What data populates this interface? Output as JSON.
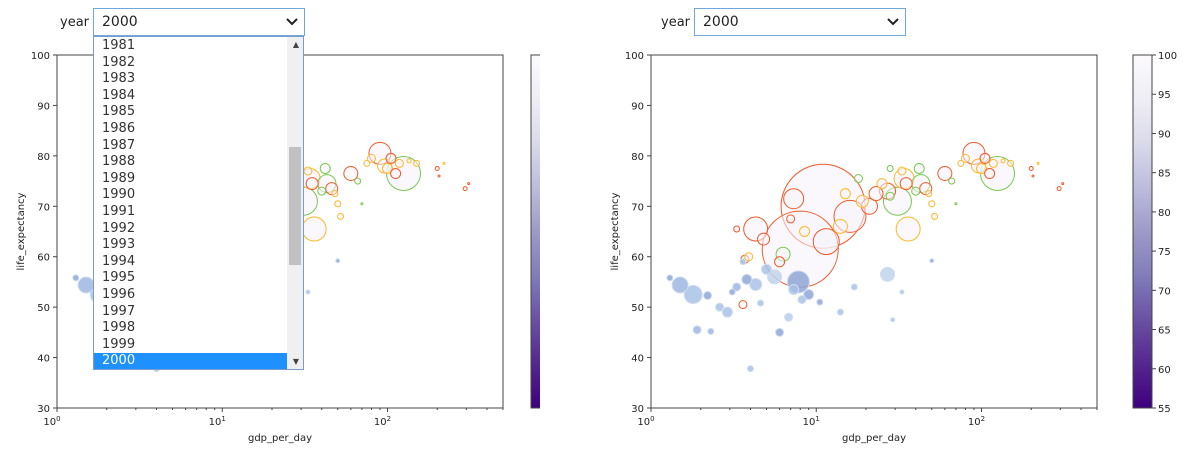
{
  "widgets": [
    {
      "label": "year",
      "value": "2000"
    },
    {
      "label": "year",
      "value": "2000"
    }
  ],
  "dropdown": {
    "options": [
      "1981",
      "1982",
      "1983",
      "1984",
      "1985",
      "1986",
      "1987",
      "1988",
      "1989",
      "1990",
      "1991",
      "1992",
      "1993",
      "1994",
      "1995",
      "1996",
      "1997",
      "1998",
      "1999",
      "2000"
    ],
    "selected": "2000"
  },
  "colorbar": {
    "ticks": [
      "100",
      "95",
      "90",
      "85",
      "80",
      "75",
      "70",
      "65",
      "60",
      "55"
    ],
    "colors": [
      "#3f007d",
      "#54278f",
      "#6a51a3",
      "#807dba",
      "#9e9ac8",
      "#bcbddc",
      "#dadaeb",
      "#efedf5",
      "#fcfbfd"
    ]
  },
  "chart_data": [
    {
      "type": "scatter",
      "xlabel": "gdp_per_day",
      "ylabel": "life_expectancy",
      "xscale": "log",
      "xlim": [
        1,
        500
      ],
      "ylim": [
        30,
        100
      ],
      "xticks": [
        "10^0",
        "10^1",
        "10^2"
      ],
      "yticks": [
        "30",
        "40",
        "50",
        "60",
        "70",
        "80",
        "90",
        "100"
      ],
      "points": [
        {
          "x": 1.3,
          "y": 55.8,
          "s": 3,
          "c": "#8fa6d6",
          "fill": true
        },
        {
          "x": 1.5,
          "y": 54.4,
          "s": 8,
          "c": "#9db6e0",
          "fill": true
        },
        {
          "x": 1.8,
          "y": 52.5,
          "s": 9,
          "c": "#a9c2e6",
          "fill": true
        },
        {
          "x": 1.9,
          "y": 45.5,
          "s": 4,
          "c": "#9db6e0",
          "fill": true
        },
        {
          "x": 2.2,
          "y": 52.3,
          "s": 4,
          "c": "#8fa6d6",
          "fill": true
        },
        {
          "x": 2.3,
          "y": 45.2,
          "s": 3,
          "c": "#9db6e0",
          "fill": true
        },
        {
          "x": 2.6,
          "y": 50.0,
          "s": 4,
          "c": "#a9c2e6",
          "fill": true
        },
        {
          "x": 2.9,
          "y": 49.0,
          "s": 5,
          "c": "#a9c2e6",
          "fill": true
        },
        {
          "x": 3.1,
          "y": 53.0,
          "s": 3,
          "c": "#8fa6d6",
          "fill": true
        },
        {
          "x": 3.3,
          "y": 54.0,
          "s": 4,
          "c": "#9db6e0",
          "fill": true
        },
        {
          "x": 3.6,
          "y": 59.0,
          "s": 3,
          "c": "#a9c2e6",
          "fill": true
        },
        {
          "x": 3.8,
          "y": 55.5,
          "s": 5,
          "c": "#8fa6d6",
          "fill": true
        },
        {
          "x": 4.0,
          "y": 37.8,
          "s": 3,
          "c": "#a9c2e6",
          "fill": true
        },
        {
          "x": 4.3,
          "y": 54.5,
          "s": 6,
          "c": "#a9c2e6",
          "fill": true
        },
        {
          "x": 4.6,
          "y": 50.8,
          "s": 3,
          "c": "#a9c2e6",
          "fill": true
        },
        {
          "x": 5.0,
          "y": 57.5,
          "s": 5,
          "c": "#a9c2e6",
          "fill": true
        },
        {
          "x": 5.6,
          "y": 56.0,
          "s": 7,
          "c": "#bfd3ec",
          "fill": true
        },
        {
          "x": 6.0,
          "y": 45.0,
          "s": 4,
          "c": "#8fa6d6",
          "fill": true
        },
        {
          "x": 6.8,
          "y": 48.0,
          "s": 4,
          "c": "#b7cceb",
          "fill": true
        },
        {
          "x": 7.3,
          "y": 53.5,
          "s": 5,
          "c": "#a9c2e6",
          "fill": true
        },
        {
          "x": 7.8,
          "y": 55.0,
          "s": 11,
          "c": "#8fa6d6",
          "fill": true
        },
        {
          "x": 8.2,
          "y": 51.5,
          "s": 4,
          "c": "#a9c2e6",
          "fill": true
        },
        {
          "x": 9.0,
          "y": 52.5,
          "s": 5,
          "c": "#8fa6d6",
          "fill": true
        },
        {
          "x": 10.5,
          "y": 51.0,
          "s": 3,
          "c": "#8fa6d6",
          "fill": true
        },
        {
          "x": 14.0,
          "y": 49.0,
          "s": 3,
          "c": "#a9c2e6",
          "fill": true
        },
        {
          "x": 17.0,
          "y": 54.0,
          "s": 3,
          "c": "#a9c2e6",
          "fill": true
        },
        {
          "x": 27.0,
          "y": 56.5,
          "s": 7,
          "c": "#bfd3ec",
          "fill": true
        },
        {
          "x": 29.0,
          "y": 47.5,
          "s": 2,
          "c": "#a9c2e6",
          "fill": true
        },
        {
          "x": 33.0,
          "y": 53.0,
          "s": 2,
          "c": "#a9c2e6",
          "fill": true
        },
        {
          "x": 50.0,
          "y": 59.2,
          "s": 2,
          "c": "#8fa6d6",
          "fill": true
        },
        {
          "x": 3.3,
          "y": 65.5,
          "s": 3,
          "c": "#f05a28",
          "fill": false
        },
        {
          "x": 3.7,
          "y": 59.5,
          "s": 4,
          "c": "#f05a28",
          "fill": false
        },
        {
          "x": 4.3,
          "y": 65.5,
          "s": 12,
          "c": "#f05a28",
          "fill": false
        },
        {
          "x": 3.9,
          "y": 60.0,
          "s": 4,
          "c": "#fdb927",
          "fill": false
        },
        {
          "x": 3.6,
          "y": 50.5,
          "s": 4,
          "c": "#f05a28",
          "fill": false
        },
        {
          "x": 4.8,
          "y": 63.5,
          "s": 6,
          "c": "#f05a28",
          "fill": false
        },
        {
          "x": 6.0,
          "y": 59.0,
          "s": 5,
          "c": "#f05a28",
          "fill": false
        },
        {
          "x": 6.3,
          "y": 60.5,
          "s": 7,
          "c": "#78c850",
          "fill": false
        },
        {
          "x": 8.0,
          "y": 61.5,
          "s": 38,
          "c": "#f05a28",
          "fill": false
        },
        {
          "x": 8.5,
          "y": 65.0,
          "s": 5,
          "c": "#fdb927",
          "fill": false
        },
        {
          "x": 7.0,
          "y": 67.5,
          "s": 4,
          "c": "#f05a28",
          "fill": false
        },
        {
          "x": 7.3,
          "y": 71.5,
          "s": 10,
          "c": "#f05a28",
          "fill": false
        },
        {
          "x": 11.0,
          "y": 70.0,
          "s": 42,
          "c": "#f05a28",
          "fill": false
        },
        {
          "x": 11.5,
          "y": 63.0,
          "s": 13,
          "c": "#f05a28",
          "fill": false
        },
        {
          "x": 14.0,
          "y": 66.0,
          "s": 7,
          "c": "#fdb927",
          "fill": false
        },
        {
          "x": 16.0,
          "y": 68.0,
          "s": 16,
          "c": "#f05a28",
          "fill": false
        },
        {
          "x": 15.0,
          "y": 72.5,
          "s": 5,
          "c": "#fdb927",
          "fill": false
        },
        {
          "x": 18.0,
          "y": 75.5,
          "s": 4,
          "c": "#78c850",
          "fill": false
        },
        {
          "x": 19.0,
          "y": 71.0,
          "s": 6,
          "c": "#fdb927",
          "fill": false
        },
        {
          "x": 21.0,
          "y": 70.0,
          "s": 8,
          "c": "#f05a28",
          "fill": false
        },
        {
          "x": 23.0,
          "y": 72.5,
          "s": 7,
          "c": "#f05a28",
          "fill": false
        },
        {
          "x": 25.0,
          "y": 74.5,
          "s": 5,
          "c": "#fdb927",
          "fill": false
        },
        {
          "x": 27.0,
          "y": 73.0,
          "s": 8,
          "c": "#f05a28",
          "fill": false
        },
        {
          "x": 28.0,
          "y": 72.0,
          "s": 4,
          "c": "#78c850",
          "fill": false
        },
        {
          "x": 31.0,
          "y": 71.0,
          "s": 14,
          "c": "#78c850",
          "fill": false
        },
        {
          "x": 34.0,
          "y": 75.5,
          "s": 10,
          "c": "#fdb927",
          "fill": false
        },
        {
          "x": 35.0,
          "y": 74.5,
          "s": 6,
          "c": "#f05a28",
          "fill": false
        },
        {
          "x": 36.0,
          "y": 65.5,
          "s": 12,
          "c": "#fdb927",
          "fill": false
        },
        {
          "x": 40.0,
          "y": 73.0,
          "s": 4,
          "c": "#78c850",
          "fill": false
        },
        {
          "x": 43.0,
          "y": 74.5,
          "s": 9,
          "c": "#78c850",
          "fill": false
        },
        {
          "x": 46.0,
          "y": 73.5,
          "s": 6,
          "c": "#f05a28",
          "fill": false
        },
        {
          "x": 48.0,
          "y": 72.5,
          "s": 3,
          "c": "#fdb927",
          "fill": false
        },
        {
          "x": 50.0,
          "y": 70.5,
          "s": 3,
          "c": "#fdb927",
          "fill": false
        },
        {
          "x": 52.0,
          "y": 68.0,
          "s": 3,
          "c": "#fdb927",
          "fill": false
        },
        {
          "x": 28.0,
          "y": 77.5,
          "s": 3,
          "c": "#78c850",
          "fill": false
        },
        {
          "x": 33.0,
          "y": 77.0,
          "s": 4,
          "c": "#fdb927",
          "fill": false
        },
        {
          "x": 42.0,
          "y": 77.5,
          "s": 5,
          "c": "#78c850",
          "fill": false
        },
        {
          "x": 60.0,
          "y": 76.5,
          "s": 7,
          "c": "#f05a28",
          "fill": false
        },
        {
          "x": 66.0,
          "y": 75.0,
          "s": 3,
          "c": "#78c850",
          "fill": false
        },
        {
          "x": 70.0,
          "y": 70.5,
          "s": 1,
          "c": "#78c850",
          "fill": false
        },
        {
          "x": 75.0,
          "y": 78.5,
          "s": 3,
          "c": "#fdb927",
          "fill": false
        },
        {
          "x": 80.0,
          "y": 79.5,
          "s": 4,
          "c": "#fdb927",
          "fill": false
        },
        {
          "x": 90.0,
          "y": 80.5,
          "s": 11,
          "c": "#f05a28",
          "fill": false
        },
        {
          "x": 96.0,
          "y": 78.0,
          "s": 7,
          "c": "#fdb927",
          "fill": false
        },
        {
          "x": 100.0,
          "y": 77.5,
          "s": 5,
          "c": "#fdb927",
          "fill": false
        },
        {
          "x": 105.0,
          "y": 79.5,
          "s": 5,
          "c": "#f05a28",
          "fill": false
        },
        {
          "x": 112.0,
          "y": 76.5,
          "s": 5,
          "c": "#f05a28",
          "fill": false
        },
        {
          "x": 118.0,
          "y": 78.5,
          "s": 4,
          "c": "#fdb927",
          "fill": false
        },
        {
          "x": 125.0,
          "y": 76.5,
          "s": 17,
          "c": "#78c850",
          "fill": false
        },
        {
          "x": 135.0,
          "y": 79.0,
          "s": 2,
          "c": "#fdb927",
          "fill": false
        },
        {
          "x": 150.0,
          "y": 78.5,
          "s": 3,
          "c": "#fdb927",
          "fill": false
        },
        {
          "x": 200.0,
          "y": 77.5,
          "s": 2,
          "c": "#f05a28",
          "fill": false
        },
        {
          "x": 205.0,
          "y": 76.0,
          "s": 1,
          "c": "#f05a28",
          "fill": false
        },
        {
          "x": 220.0,
          "y": 78.5,
          "s": 1,
          "c": "#fdb927",
          "fill": false
        },
        {
          "x": 295.0,
          "y": 73.5,
          "s": 2,
          "c": "#f05a28",
          "fill": false
        },
        {
          "x": 310.0,
          "y": 74.5,
          "s": 1,
          "c": "#f05a28",
          "fill": false
        }
      ]
    }
  ]
}
